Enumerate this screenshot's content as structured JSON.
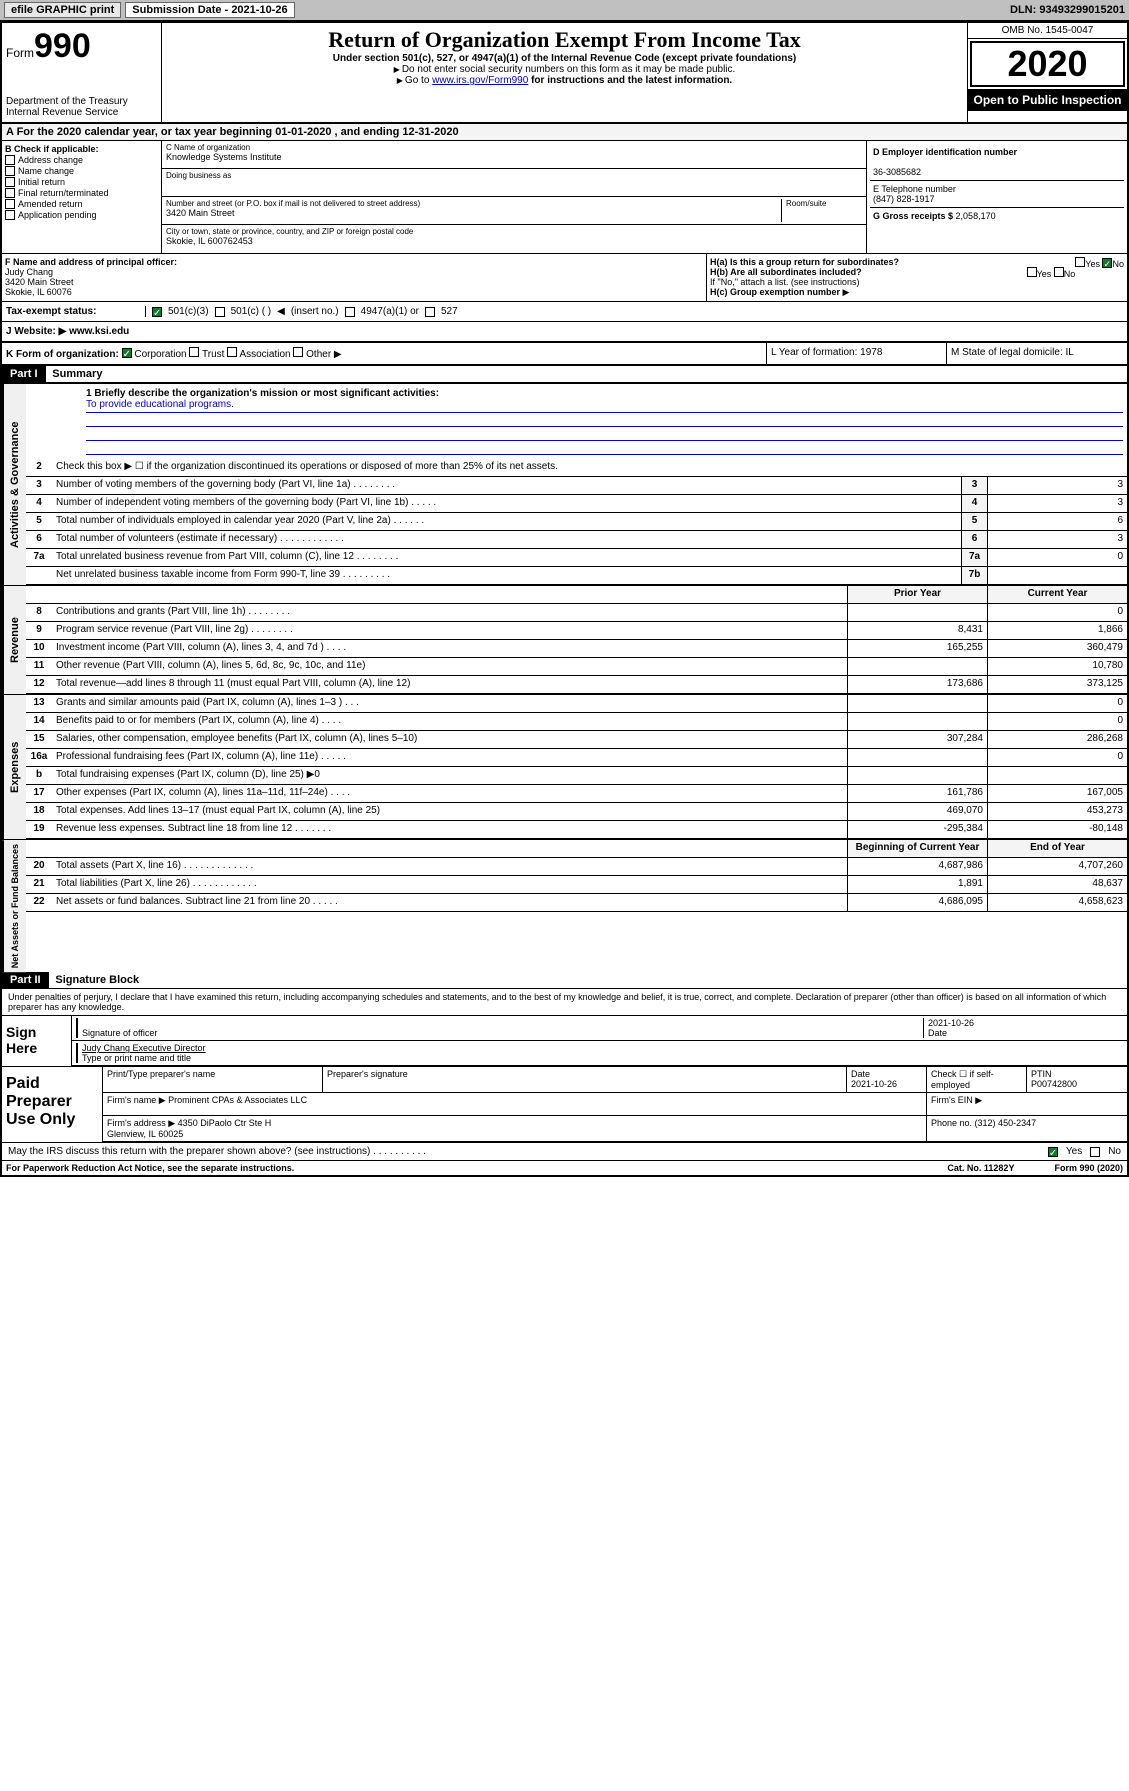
{
  "topbar": {
    "efile": "efile GRAPHIC print",
    "subdate_label": "Submission Date - 2021-10-26",
    "dln": "DLN: 93493299015201"
  },
  "header": {
    "form_prefix": "Form",
    "form_num": "990",
    "dept": "Department of the Treasury\nInternal Revenue Service",
    "title": "Return of Organization Exempt From Income Tax",
    "sub": "Under section 501(c), 527, or 4947(a)(1) of the Internal Revenue Code (except private foundations)",
    "sub2": "Do not enter social security numbers on this form as it may be made public.",
    "sub3_pre": "Go to ",
    "sub3_link": "www.irs.gov/Form990",
    "sub3_post": " for instructions and the latest information.",
    "omb": "OMB No. 1545-0047",
    "year": "2020",
    "open": "Open to Public Inspection"
  },
  "taxyear": "A For the 2020 calendar year, or tax year beginning 01-01-2020    , and ending 12-31-2020",
  "boxB": {
    "label": "B Check if applicable:",
    "opts": [
      "Address change",
      "Name change",
      "Initial return",
      "Final return/terminated",
      "Amended return",
      "Application pending"
    ]
  },
  "boxC": {
    "name_lbl": "C Name of organization",
    "name": "Knowledge Systems Institute",
    "dba_lbl": "Doing business as",
    "addr_lbl": "Number and street (or P.O. box if mail is not delivered to street address)",
    "room_lbl": "Room/suite",
    "addr": "3420 Main Street",
    "city_lbl": "City or town, state or province, country, and ZIP or foreign postal code",
    "city": "Skokie, IL  600762453"
  },
  "boxD": {
    "ein_lbl": "D Employer identification number",
    "ein": "36-3085682",
    "tel_lbl": "E Telephone number",
    "tel": "(847) 828-1917",
    "gross_lbl": "G Gross receipts $ ",
    "gross": "2,058,170"
  },
  "boxF": {
    "lbl": "F  Name and address of principal officer:",
    "name": "Judy Chang",
    "addr1": "3420 Main Street",
    "addr2": "Skokie, IL  60076"
  },
  "boxH": {
    "a": "H(a)  Is this a group return for subordinates?",
    "b": "H(b)  Are all subordinates included?",
    "b_note": "If \"No,\" attach a list. (see instructions)",
    "c": "H(c)  Group exemption number",
    "yes": "Yes",
    "no": "No"
  },
  "taxstat": {
    "lbl": "Tax-exempt status:",
    "o1": "501(c)(3)",
    "o2": "501(c) (  )",
    "o2b": "(insert no.)",
    "o3": "4947(a)(1) or",
    "o4": "527"
  },
  "website": {
    "lbl": "J Website:",
    "val": "www.ksi.edu"
  },
  "boxK": {
    "lbl": "K Form of organization:",
    "corp": "Corporation",
    "trust": "Trust",
    "assoc": "Association",
    "other": "Other",
    "L": "L Year of formation: 1978",
    "M": "M State of legal domicile: IL"
  },
  "part1": {
    "num": "Part I",
    "title": "Summary"
  },
  "mission": {
    "q": "1  Briefly describe the organization's mission or most significant activities:",
    "a": "To provide educational programs."
  },
  "line2": "Check this box ▶ ☐  if the organization discontinued its operations or disposed of more than 25% of its net assets.",
  "gov_rows": [
    {
      "n": "3",
      "d": "Number of voting members of the governing body (Part VI, line 1a)   .    .    .    .    .    .    .    .",
      "b": "3",
      "v": "3"
    },
    {
      "n": "4",
      "d": "Number of independent voting members of the governing body (Part VI, line 1b)   .    .    .    .    .",
      "b": "4",
      "v": "3"
    },
    {
      "n": "5",
      "d": "Total number of individuals employed in calendar year 2020 (Part V, line 2a)   .    .    .    .    .    .",
      "b": "5",
      "v": "6"
    },
    {
      "n": "6",
      "d": "Total number of volunteers (estimate if necessary)   .    .    .    .    .    .    .    .    .    .    .    .",
      "b": "6",
      "v": "3"
    },
    {
      "n": "7a",
      "d": "Total unrelated business revenue from Part VIII, column (C), line 12   .    .    .    .    .    .    .    .",
      "b": "7a",
      "v": "0"
    },
    {
      "n": "",
      "d": "Net unrelated business taxable income from Form 990-T, line 39   .    .    .    .    .    .    .    .    .",
      "b": "7b",
      "v": ""
    }
  ],
  "rev_hdr": {
    "prior": "Prior Year",
    "curr": "Current Year"
  },
  "rev_rows": [
    {
      "n": "8",
      "d": "Contributions and grants (Part VIII, line 1h)   .    .    .    .    .    .    .    .",
      "p": "",
      "c": "0"
    },
    {
      "n": "9",
      "d": "Program service revenue (Part VIII, line 2g)   .    .    .    .    .    .    .    .",
      "p": "8,431",
      "c": "1,866"
    },
    {
      "n": "10",
      "d": "Investment income (Part VIII, column (A), lines 3, 4, and 7d )   .    .    .    .",
      "p": "165,255",
      "c": "360,479"
    },
    {
      "n": "11",
      "d": "Other revenue (Part VIII, column (A), lines 5, 6d, 8c, 9c, 10c, and 11e)",
      "p": "",
      "c": "10,780"
    },
    {
      "n": "12",
      "d": "Total revenue—add lines 8 through 11 (must equal Part VIII, column (A), line 12)",
      "p": "173,686",
      "c": "373,125"
    }
  ],
  "exp_rows": [
    {
      "n": "13",
      "d": "Grants and similar amounts paid (Part IX, column (A), lines 1–3 )   .    .    .",
      "p": "",
      "c": "0"
    },
    {
      "n": "14",
      "d": "Benefits paid to or for members (Part IX, column (A), line 4)   .    .    .    .",
      "p": "",
      "c": "0"
    },
    {
      "n": "15",
      "d": "Salaries, other compensation, employee benefits (Part IX, column (A), lines 5–10)",
      "p": "307,284",
      "c": "286,268"
    },
    {
      "n": "16a",
      "d": "Professional fundraising fees (Part IX, column (A), line 11e)   .    .    .    .    .",
      "p": "",
      "c": "0"
    },
    {
      "n": "b",
      "d": "Total fundraising expenses (Part IX, column (D), line 25) ▶0",
      "p": "",
      "c": ""
    },
    {
      "n": "17",
      "d": "Other expenses (Part IX, column (A), lines 11a–11d, 11f–24e)   .    .    .    .",
      "p": "161,786",
      "c": "167,005"
    },
    {
      "n": "18",
      "d": "Total expenses. Add lines 13–17 (must equal Part IX, column (A), line 25)",
      "p": "469,070",
      "c": "453,273"
    },
    {
      "n": "19",
      "d": "Revenue less expenses. Subtract line 18 from line 12   .    .    .    .    .    .    .",
      "p": "-295,384",
      "c": "-80,148"
    }
  ],
  "net_hdr": {
    "prior": "Beginning of Current Year",
    "curr": "End of Year"
  },
  "net_rows": [
    {
      "n": "20",
      "d": "Total assets (Part X, line 16)   .    .    .    .    .    .    .    .    .    .    .    .    .",
      "p": "4,687,986",
      "c": "4,707,260"
    },
    {
      "n": "21",
      "d": "Total liabilities (Part X, line 26)   .    .    .    .    .    .    .    .    .    .    .    .",
      "p": "1,891",
      "c": "48,637"
    },
    {
      "n": "22",
      "d": "Net assets or fund balances. Subtract line 21 from line 20   .    .    .    .    .",
      "p": "4,686,095",
      "c": "4,658,623"
    }
  ],
  "vlabels": {
    "gov": "Activities & Governance",
    "rev": "Revenue",
    "exp": "Expenses",
    "net": "Net Assets or Fund Balances"
  },
  "part2": {
    "num": "Part II",
    "title": "Signature Block"
  },
  "sig": {
    "perjury": "Under penalties of perjury, I declare that I have examined this return, including accompanying schedules and statements, and to the best of my knowledge and belief, it is true, correct, and complete. Declaration of preparer (other than officer) is based on all information of which preparer has any knowledge.",
    "here": "Sign Here",
    "sig_lbl": "Signature of officer",
    "date": "2021-10-26",
    "date_lbl": "Date",
    "name": "Judy Chang Executive Director",
    "name_lbl": "Type or print name and title"
  },
  "paid": {
    "lbl": "Paid Preparer Use Only",
    "prep_lbl": "Print/Type preparer's name",
    "sig_lbl": "Preparer's signature",
    "date_lbl": "Date",
    "date": "2021-10-26",
    "check_lbl": "Check ☐ if self-employed",
    "ptin_lbl": "PTIN",
    "ptin": "P00742800",
    "firm_lbl": "Firm's name      ▶",
    "firm": "Prominent CPAs & Associates LLC",
    "ein_lbl": "Firm's EIN ▶",
    "addr_lbl": "Firm's address ▶",
    "addr": "4350 DiPaolo Ctr Ste H\nGlenview, IL  60025",
    "phone_lbl": "Phone no. ",
    "phone": "(312) 450-2347"
  },
  "discuss": {
    "q": "May the IRS discuss this return with the preparer shown above? (see instructions)    .    .    .    .    .    .    .    .    .    .",
    "yes": "Yes",
    "no": "No"
  },
  "footer": {
    "pra": "For Paperwork Reduction Act Notice, see the separate instructions.",
    "cat": "Cat. No. 11282Y",
    "form": "Form 990 (2020)"
  }
}
